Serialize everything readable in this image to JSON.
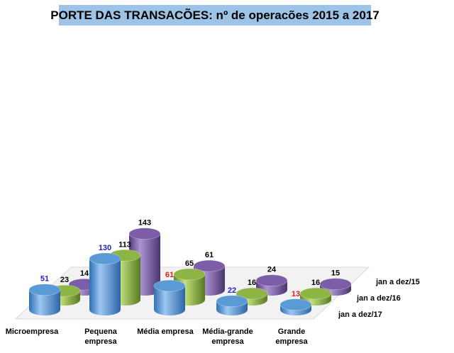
{
  "chart_data": {
    "type": "bar",
    "title": "PORTE DAS TRANSACÕES:  nº de operacões 2015 a 2017",
    "categories": [
      [
        "Microempresa"
      ],
      [
        "Pequena",
        "empresa"
      ],
      [
        "Média empresa"
      ],
      [
        "Média-grande",
        "empresa"
      ],
      [
        "Grande",
        "empresa"
      ]
    ],
    "series": [
      {
        "name": "jan a dez/17",
        "values": [
          51,
          130,
          61,
          22,
          13
        ],
        "color": "#5b9bd5",
        "label_colors": [
          "#1f1fcc",
          "#1f1fcc",
          "#e02020",
          "#1f1fcc",
          "#e02020"
        ]
      },
      {
        "name": "jan a dez/16",
        "values": [
          23,
          113,
          65,
          16,
          16
        ],
        "color": "#8db543",
        "label_colors": [
          "#000000",
          "#000000",
          "#000000",
          "#000000",
          "#000000"
        ]
      },
      {
        "name": "jan a dez/15",
        "values": [
          14,
          143,
          61,
          24,
          15
        ],
        "color": "#7b5ea7",
        "label_colors": [
          "#000000",
          "#000000",
          "#000000",
          "#000000",
          "#000000"
        ]
      }
    ],
    "ylim": [
      0,
      150
    ],
    "grid": false,
    "legend": "depth-axis-right"
  }
}
